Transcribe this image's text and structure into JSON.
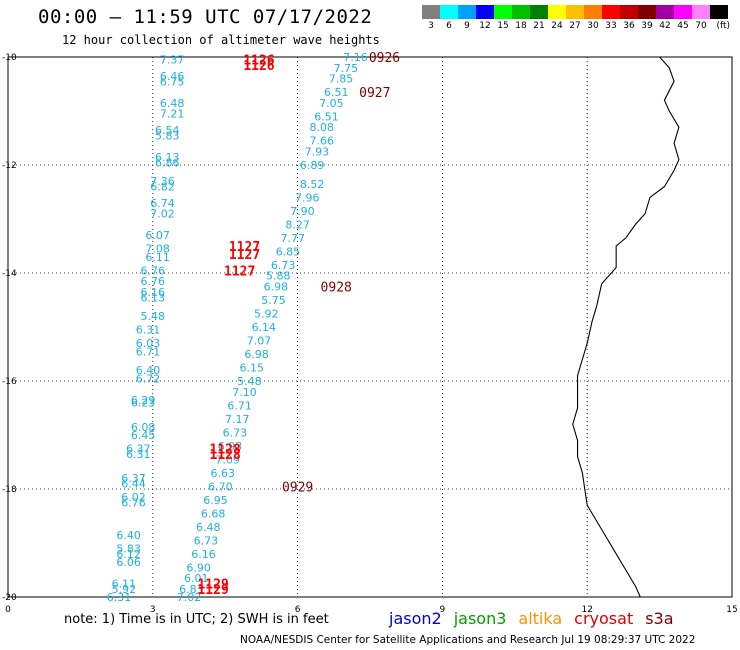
{
  "header": {
    "title": "00:00 – 11:59 UTC 07/17/2022",
    "subtitle": "12 hour collection of altimeter wave heights"
  },
  "legend": {
    "bins": [
      {
        "label": "3",
        "color": "#808080"
      },
      {
        "label": "6",
        "color": "#00ffff"
      },
      {
        "label": "9",
        "color": "#00a0ff"
      },
      {
        "label": "12",
        "color": "#0000ff"
      },
      {
        "label": "15",
        "color": "#00ff00"
      },
      {
        "label": "18",
        "color": "#00c000"
      },
      {
        "label": "21",
        "color": "#008000"
      },
      {
        "label": "24",
        "color": "#ffff00"
      },
      {
        "label": "27",
        "color": "#ffc000"
      },
      {
        "label": "30",
        "color": "#ff8000"
      },
      {
        "label": "33",
        "color": "#ff0000"
      },
      {
        "label": "36",
        "color": "#c00000"
      },
      {
        "label": "39",
        "color": "#800000"
      },
      {
        "label": "42",
        "color": "#a000a0"
      },
      {
        "label": "45",
        "color": "#ff00ff"
      },
      {
        "label": "70",
        "color": "#ff80ff"
      },
      {
        "label": "",
        "color": "#000000"
      }
    ],
    "unit": "(ft)"
  },
  "axes": {
    "x_ticks": [
      "0",
      "3",
      "6",
      "9",
      "12",
      "15"
    ],
    "y_ticks": [
      "-10",
      "-12",
      "-14",
      "-16",
      "-18",
      "-20"
    ],
    "x_range": [
      0,
      15
    ],
    "y_range": [
      -20,
      -10
    ]
  },
  "colors": {
    "track": "#20b0e0",
    "label_1126": "#ff0000",
    "label_0926": "#800000"
  },
  "track_labels": [
    {
      "text": "7.16",
      "lon": 7.2,
      "lat": -10.0,
      "color": "track"
    },
    {
      "text": "7.75",
      "lon": 7.0,
      "lat": -10.2,
      "color": "track"
    },
    {
      "text": "7.85",
      "lon": 6.9,
      "lat": -10.4,
      "color": "track"
    },
    {
      "text": "6.51",
      "lon": 6.8,
      "lat": -10.65,
      "color": "track"
    },
    {
      "text": "7.05",
      "lon": 6.7,
      "lat": -10.85,
      "color": "track"
    },
    {
      "text": "6.51",
      "lon": 6.6,
      "lat": -11.1,
      "color": "track"
    },
    {
      "text": "8.08",
      "lon": 6.5,
      "lat": -11.3,
      "color": "track"
    },
    {
      "text": "7.66",
      "lon": 6.5,
      "lat": -11.55,
      "color": "track"
    },
    {
      "text": "7.93",
      "lon": 6.4,
      "lat": -11.75,
      "color": "track"
    },
    {
      "text": "6.89",
      "lon": 6.3,
      "lat": -12.0,
      "color": "track"
    },
    {
      "text": "8.52",
      "lon": 6.3,
      "lat": -12.35,
      "color": "track"
    },
    {
      "text": "7.96",
      "lon": 6.2,
      "lat": -12.6,
      "color": "track"
    },
    {
      "text": "7.90",
      "lon": 6.1,
      "lat": -12.85,
      "color": "track"
    },
    {
      "text": "8.27",
      "lon": 6.0,
      "lat": -13.1,
      "color": "track"
    },
    {
      "text": "7.77",
      "lon": 5.9,
      "lat": -13.35,
      "color": "track"
    },
    {
      "text": "6.85",
      "lon": 5.8,
      "lat": -13.6,
      "color": "track"
    },
    {
      "text": "6.73",
      "lon": 5.7,
      "lat": -13.85,
      "color": "track"
    },
    {
      "text": "5.88",
      "lon": 5.6,
      "lat": -14.05,
      "color": "track"
    },
    {
      "text": "6.98",
      "lon": 5.55,
      "lat": -14.25,
      "color": "track"
    },
    {
      "text": "5.75",
      "lon": 5.5,
      "lat": -14.5,
      "color": "track"
    },
    {
      "text": "5.92",
      "lon": 5.35,
      "lat": -14.75,
      "color": "track"
    },
    {
      "text": "6.14",
      "lon": 5.3,
      "lat": -15.0,
      "color": "track"
    },
    {
      "text": "7.07",
      "lon": 5.2,
      "lat": -15.25,
      "color": "track"
    },
    {
      "text": "6.98",
      "lon": 5.15,
      "lat": -15.5,
      "color": "track"
    },
    {
      "text": "6.15",
      "lon": 5.05,
      "lat": -15.75,
      "color": "track"
    },
    {
      "text": "5.48",
      "lon": 5.0,
      "lat": -16.0,
      "color": "track"
    },
    {
      "text": "7.10",
      "lon": 4.9,
      "lat": -16.2,
      "color": "track"
    },
    {
      "text": "6.71",
      "lon": 4.8,
      "lat": -16.45,
      "color": "track"
    },
    {
      "text": "7.17",
      "lon": 4.75,
      "lat": -16.7,
      "color": "track"
    },
    {
      "text": "6.73",
      "lon": 4.7,
      "lat": -16.95,
      "color": "track"
    },
    {
      "text": "6.93",
      "lon": 4.6,
      "lat": -17.2,
      "color": "track"
    },
    {
      "text": "7.09",
      "lon": 4.55,
      "lat": -17.45,
      "color": "track"
    },
    {
      "text": "6.63",
      "lon": 4.45,
      "lat": -17.7,
      "color": "track"
    },
    {
      "text": "6.70",
      "lon": 4.4,
      "lat": -17.95,
      "color": "track"
    },
    {
      "text": "6.95",
      "lon": 4.3,
      "lat": -18.2,
      "color": "track"
    },
    {
      "text": "6.68",
      "lon": 4.25,
      "lat": -18.45,
      "color": "track"
    },
    {
      "text": "6.48",
      "lon": 4.15,
      "lat": -18.7,
      "color": "track"
    },
    {
      "text": "6.73",
      "lon": 4.1,
      "lat": -18.95,
      "color": "track"
    },
    {
      "text": "6.16",
      "lon": 4.05,
      "lat": -19.2,
      "color": "track"
    },
    {
      "text": "6.90",
      "lon": 3.95,
      "lat": -19.45,
      "color": "track"
    },
    {
      "text": "6.01",
      "lon": 3.9,
      "lat": -19.65,
      "color": "track"
    },
    {
      "text": "6.83",
      "lon": 3.8,
      "lat": -19.85,
      "color": "track"
    },
    {
      "text": "7.02",
      "lon": 3.75,
      "lat": -20.0,
      "color": "track"
    },
    {
      "text": "7.37",
      "lon": 3.4,
      "lat": -10.05,
      "color": "track"
    },
    {
      "text": "6.46",
      "lon": 3.4,
      "lat": -10.35,
      "color": "track"
    },
    {
      "text": "6.75",
      "lon": 3.4,
      "lat": -10.45,
      "color": "track"
    },
    {
      "text": "6.48",
      "lon": 3.4,
      "lat": -10.85,
      "color": "track"
    },
    {
      "text": "7.21",
      "lon": 3.4,
      "lat": -11.05,
      "color": "track"
    },
    {
      "text": "6.54",
      "lon": 3.3,
      "lat": -11.35,
      "color": "track"
    },
    {
      "text": "5.83",
      "lon": 3.3,
      "lat": -11.45,
      "color": "track"
    },
    {
      "text": "6.13",
      "lon": 3.3,
      "lat": -11.85,
      "color": "track"
    },
    {
      "text": "6.86",
      "lon": 3.3,
      "lat": -11.95,
      "color": "track"
    },
    {
      "text": "7.36",
      "lon": 3.2,
      "lat": -12.3,
      "color": "track"
    },
    {
      "text": "6.82",
      "lon": 3.2,
      "lat": -12.4,
      "color": "track"
    },
    {
      "text": "6.74",
      "lon": 3.2,
      "lat": -12.7,
      "color": "track"
    },
    {
      "text": "7.02",
      "lon": 3.2,
      "lat": -12.9,
      "color": "track"
    },
    {
      "text": "6.07",
      "lon": 3.1,
      "lat": -13.3,
      "color": "track"
    },
    {
      "text": "7.08",
      "lon": 3.1,
      "lat": -13.55,
      "color": "track"
    },
    {
      "text": "6.11",
      "lon": 3.1,
      "lat": -13.7,
      "color": "track"
    },
    {
      "text": "6.76",
      "lon": 3.0,
      "lat": -13.95,
      "color": "track"
    },
    {
      "text": "6.76",
      "lon": 3.0,
      "lat": -14.15,
      "color": "track"
    },
    {
      "text": "6.16",
      "lon": 3.0,
      "lat": -14.35,
      "color": "track"
    },
    {
      "text": "6.13",
      "lon": 3.0,
      "lat": -14.45,
      "color": "track"
    },
    {
      "text": "5.48",
      "lon": 3.0,
      "lat": -14.8,
      "color": "track"
    },
    {
      "text": "6.31",
      "lon": 2.9,
      "lat": -15.05,
      "color": "track"
    },
    {
      "text": "6.03",
      "lon": 2.9,
      "lat": -15.3,
      "color": "track"
    },
    {
      "text": "6.71",
      "lon": 2.9,
      "lat": -15.45,
      "color": "track"
    },
    {
      "text": "6.40",
      "lon": 2.9,
      "lat": -15.8,
      "color": "track"
    },
    {
      "text": "6.72",
      "lon": 2.9,
      "lat": -15.95,
      "color": "track"
    },
    {
      "text": "6.29",
      "lon": 2.8,
      "lat": -16.35,
      "color": "track"
    },
    {
      "text": "6.23",
      "lon": 2.8,
      "lat": -16.4,
      "color": "track"
    },
    {
      "text": "6.08",
      "lon": 2.8,
      "lat": -16.85,
      "color": "track"
    },
    {
      "text": "6.45",
      "lon": 2.8,
      "lat": -17.0,
      "color": "track"
    },
    {
      "text": "6.37",
      "lon": 2.7,
      "lat": -17.25,
      "color": "track"
    },
    {
      "text": "6.31",
      "lon": 2.7,
      "lat": -17.35,
      "color": "track"
    },
    {
      "text": "6.37",
      "lon": 2.6,
      "lat": -17.8,
      "color": "track"
    },
    {
      "text": "6.44",
      "lon": 2.6,
      "lat": -17.9,
      "color": "track"
    },
    {
      "text": "6.02",
      "lon": 2.6,
      "lat": -18.15,
      "color": "track"
    },
    {
      "text": "6.76",
      "lon": 2.6,
      "lat": -18.25,
      "color": "track"
    },
    {
      "text": "6.40",
      "lon": 2.5,
      "lat": -18.85,
      "color": "track"
    },
    {
      "text": "5.83",
      "lon": 2.5,
      "lat": -19.1,
      "color": "track"
    },
    {
      "text": "6.12",
      "lon": 2.5,
      "lat": -19.2,
      "color": "track"
    },
    {
      "text": "6.06",
      "lon": 2.5,
      "lat": -19.35,
      "color": "track"
    },
    {
      "text": "6.11",
      "lon": 2.4,
      "lat": -19.75,
      "color": "track"
    },
    {
      "text": "5.92",
      "lon": 2.4,
      "lat": -19.85,
      "color": "track"
    },
    {
      "text": "6.31",
      "lon": 2.3,
      "lat": -20.0,
      "color": "track"
    }
  ],
  "time_labels": [
    {
      "text": "1126",
      "lon": 5.2,
      "lat": -10.05,
      "color": "label_1126",
      "bold": true
    },
    {
      "text": "1126",
      "lon": 5.2,
      "lat": -10.15,
      "color": "label_1126",
      "bold": true
    },
    {
      "text": "0926",
      "lon": 7.8,
      "lat": -10.0,
      "color": "label_0926",
      "bold": false
    },
    {
      "text": "0927",
      "lon": 7.6,
      "lat": -10.65,
      "color": "label_0926",
      "bold": false
    },
    {
      "text": "1127",
      "lon": 4.9,
      "lat": -13.5,
      "color": "label_1126",
      "bold": true
    },
    {
      "text": "1127",
      "lon": 4.9,
      "lat": -13.65,
      "color": "label_1126",
      "bold": true
    },
    {
      "text": "1127",
      "lon": 4.8,
      "lat": -13.95,
      "color": "label_1126",
      "bold": true
    },
    {
      "text": "0928",
      "lon": 6.8,
      "lat": -14.25,
      "color": "label_0926",
      "bold": false
    },
    {
      "text": "1128",
      "lon": 4.5,
      "lat": -17.25,
      "color": "label_1126",
      "bold": true
    },
    {
      "text": "1128",
      "lon": 4.5,
      "lat": -17.35,
      "color": "label_1126",
      "bold": true
    },
    {
      "text": "0929",
      "lon": 6.0,
      "lat": -17.95,
      "color": "label_0926",
      "bold": false
    },
    {
      "text": "1129",
      "lon": 4.25,
      "lat": -19.75,
      "color": "label_1126",
      "bold": true
    },
    {
      "text": "1129",
      "lon": 4.25,
      "lat": -19.85,
      "color": "label_1126",
      "bold": true
    }
  ],
  "coastline": [
    [
      13.5,
      -10.0
    ],
    [
      13.7,
      -10.2
    ],
    [
      13.8,
      -10.45
    ],
    [
      13.6,
      -10.8
    ],
    [
      13.7,
      -11.0
    ],
    [
      13.9,
      -11.3
    ],
    [
      13.8,
      -11.6
    ],
    [
      13.9,
      -11.9
    ],
    [
      13.8,
      -12.1
    ],
    [
      13.6,
      -12.4
    ],
    [
      13.3,
      -12.6
    ],
    [
      13.2,
      -12.9
    ],
    [
      13.0,
      -13.1
    ],
    [
      12.8,
      -13.35
    ],
    [
      12.6,
      -13.5
    ],
    [
      12.6,
      -13.9
    ],
    [
      12.3,
      -14.2
    ],
    [
      12.2,
      -14.6
    ],
    [
      12.1,
      -14.9
    ],
    [
      12.0,
      -15.3
    ],
    [
      11.9,
      -15.6
    ],
    [
      11.8,
      -15.9
    ],
    [
      11.8,
      -16.2
    ],
    [
      11.8,
      -16.5
    ],
    [
      11.7,
      -16.8
    ],
    [
      11.8,
      -17.1
    ],
    [
      11.8,
      -17.4
    ],
    [
      11.9,
      -17.7
    ],
    [
      11.95,
      -18.0
    ],
    [
      12.0,
      -18.3
    ],
    [
      12.2,
      -18.6
    ],
    [
      12.4,
      -18.9
    ],
    [
      12.6,
      -19.2
    ],
    [
      12.8,
      -19.5
    ],
    [
      13.0,
      -19.8
    ],
    [
      13.1,
      -20.0
    ]
  ],
  "footer": {
    "note": "note: 1) Time is in UTC; 2) SWH is in feet",
    "satellites": [
      {
        "name": "jason2",
        "color": "#0000e0"
      },
      {
        "name": "jason3",
        "color": "#00a000"
      },
      {
        "name": "altika",
        "color": "#ff9000"
      },
      {
        "name": "cryosat",
        "color": "#e00000"
      },
      {
        "name": "s3a",
        "color": "#800000"
      }
    ],
    "credit": "NOAA/NESDIS Center for Satellite Applications and Research   Jul 19 08:29:37 UTC 2022"
  }
}
